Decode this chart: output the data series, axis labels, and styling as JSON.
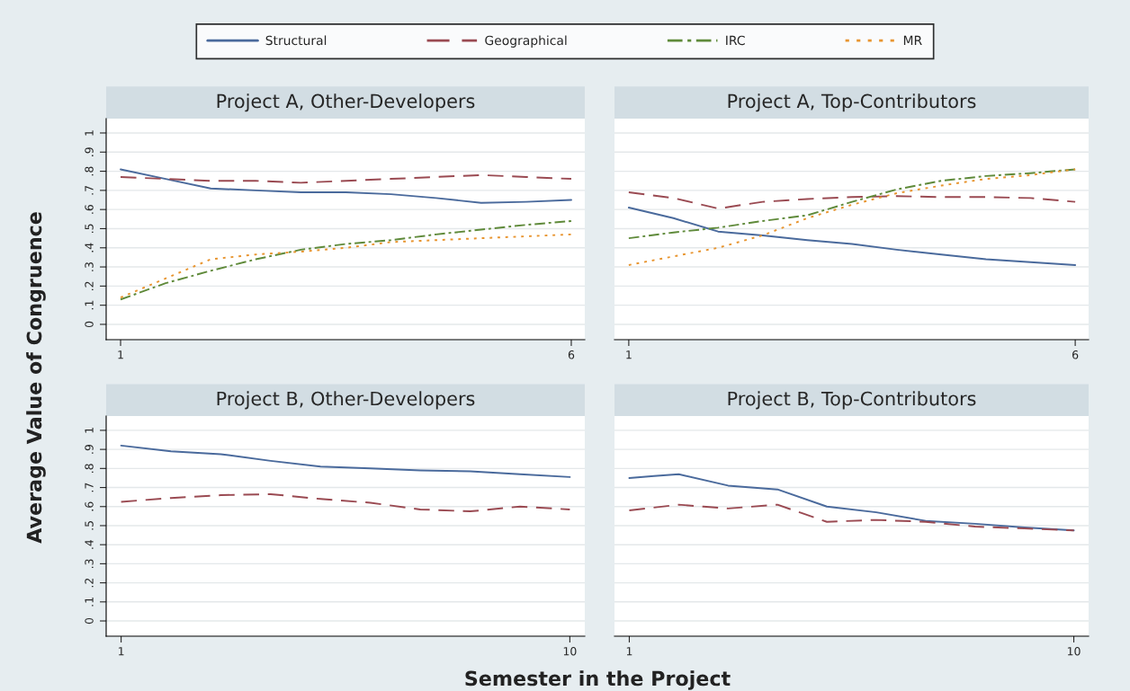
{
  "chart_data": [
    {
      "type": "line",
      "title": "Project A, Other-Developers",
      "ylabel": "Average Value of Congruence",
      "legend": "top",
      "grid": "y",
      "xlim": [
        0.84,
        6.15
      ],
      "xticks": [
        1,
        6
      ],
      "ylim": [
        -0.08,
        1.075
      ],
      "yticks": [
        0,
        {
          "value": 0.1,
          "label": ".1"
        },
        {
          "value": 0.2,
          "label": ".2"
        },
        {
          "value": 0.3,
          "label": ".3"
        },
        {
          "value": 0.4,
          "label": ".4"
        },
        {
          "value": 0.5,
          "label": ".5"
        },
        {
          "value": 0.6,
          "label": ".6"
        },
        {
          "value": 0.7,
          "label": ".7"
        },
        {
          "value": 0.8,
          "label": ".8"
        },
        {
          "value": 0.9,
          "label": ".9"
        },
        1
      ],
      "x": [
        1,
        1.5,
        2,
        2.5,
        3,
        3.5,
        4,
        4.5,
        5,
        5.5,
        6
      ],
      "series": [
        {
          "name": "Structural",
          "color": "#4a6a9c",
          "line_style": "solid",
          "values": [
            0.81,
            0.76,
            0.71,
            0.7,
            0.69,
            0.69,
            0.68,
            0.66,
            0.635,
            0.64,
            0.65
          ]
        },
        {
          "name": "Geographical",
          "color": "#9a4a52",
          "line_style": "dashed",
          "values": [
            0.77,
            0.76,
            0.75,
            0.75,
            0.74,
            0.75,
            0.76,
            0.77,
            0.78,
            0.77,
            0.76
          ]
        },
        {
          "name": "IRC",
          "color": "#5f8a3a",
          "line_style": "dashdot",
          "values": [
            0.13,
            0.215,
            0.28,
            0.34,
            0.39,
            0.42,
            0.44,
            0.47,
            0.495,
            0.52,
            0.54
          ]
        },
        {
          "name": "MR",
          "color": "#e89530",
          "line_style": "dotted",
          "values": [
            0.14,
            0.24,
            0.34,
            0.365,
            0.38,
            0.4,
            0.43,
            0.44,
            0.45,
            0.46,
            0.47
          ]
        }
      ]
    },
    {
      "type": "line",
      "title": "Project A, Top-Contributors",
      "tick_labels": "x",
      "grid": "y",
      "xlim": [
        0.84,
        6.15
      ],
      "xticks": [
        1,
        6
      ],
      "ylim": [
        -0.08,
        1.075
      ],
      "yticks": [
        0,
        0.1,
        0.2,
        0.3,
        0.4,
        0.5,
        0.6,
        0.7,
        0.8,
        0.9,
        1
      ],
      "x": [
        1,
        1.5,
        2,
        2.5,
        3,
        3.5,
        4,
        4.5,
        5,
        5.5,
        6
      ],
      "series": [
        {
          "color": "#4a6a9c",
          "line_style": "solid",
          "values": [
            0.61,
            0.555,
            0.485,
            0.465,
            0.44,
            0.42,
            0.39,
            0.365,
            0.34,
            0.325,
            0.31
          ]
        },
        {
          "color": "#9a4a52",
          "line_style": "dashed",
          "values": [
            0.69,
            0.66,
            0.605,
            0.64,
            0.655,
            0.665,
            0.67,
            0.665,
            0.665,
            0.66,
            0.64
          ]
        },
        {
          "color": "#5f8a3a",
          "line_style": "dashdot",
          "values": [
            0.45,
            0.48,
            0.505,
            0.54,
            0.57,
            0.64,
            0.705,
            0.75,
            0.775,
            0.79,
            0.81
          ]
        },
        {
          "color": "#e89530",
          "line_style": "dotted",
          "values": [
            0.31,
            0.355,
            0.4,
            0.465,
            0.555,
            0.625,
            0.685,
            0.725,
            0.76,
            0.78,
            0.81
          ]
        }
      ]
    },
    {
      "type": "line",
      "title": "Project B, Other-Developers",
      "xlabel": "Semester in the Project",
      "grid": "y",
      "xlim": [
        0.7,
        10.3
      ],
      "xticks": [
        1,
        10
      ],
      "ylim": [
        -0.08,
        1.075
      ],
      "yticks": [
        0,
        {
          "value": 0.1,
          "label": ".1"
        },
        {
          "value": 0.2,
          "label": ".2"
        },
        {
          "value": 0.3,
          "label": ".3"
        },
        {
          "value": 0.4,
          "label": ".4"
        },
        {
          "value": 0.5,
          "label": ".5"
        },
        {
          "value": 0.6,
          "label": ".6"
        },
        {
          "value": 0.7,
          "label": ".7"
        },
        {
          "value": 0.8,
          "label": ".8"
        },
        {
          "value": 0.9,
          "label": ".9"
        },
        1
      ],
      "x": [
        1,
        2,
        3,
        4,
        5,
        6,
        7,
        8,
        9,
        10
      ],
      "series": [
        {
          "color": "#4a6a9c",
          "line_style": "solid",
          "values": [
            0.92,
            0.89,
            0.875,
            0.84,
            0.81,
            0.8,
            0.79,
            0.785,
            0.77,
            0.755
          ]
        },
        {
          "color": "#9a4a52",
          "line_style": "dashed",
          "values": [
            0.625,
            0.645,
            0.66,
            0.665,
            0.64,
            0.62,
            0.585,
            0.575,
            0.6,
            0.585
          ]
        }
      ]
    },
    {
      "type": "line",
      "title": "Project B, Top-Contributors",
      "tick_labels": "x",
      "grid": "y",
      "xlim": [
        0.7,
        10.3
      ],
      "xticks": [
        1,
        10
      ],
      "ylim": [
        -0.08,
        1.075
      ],
      "yticks": [
        0,
        0.1,
        0.2,
        0.3,
        0.4,
        0.5,
        0.6,
        0.7,
        0.8,
        0.9,
        1
      ],
      "series": [
        {
          "color": "#4a6a9c",
          "line_style": "solid",
          "x": [
            1,
            1.5,
            2,
            3,
            4,
            5,
            6,
            7,
            8,
            9,
            10
          ],
          "values": [
            0.75,
            0.76,
            0.77,
            0.71,
            0.69,
            0.6,
            0.57,
            0.525,
            0.51,
            0.49,
            0.475
          ]
        },
        {
          "color": "#9a4a52",
          "line_style": "dashed",
          "x": [
            1,
            2,
            2.5,
            3,
            4,
            4.5,
            5,
            6,
            7,
            8,
            9,
            10
          ],
          "values": [
            0.58,
            0.61,
            0.6,
            0.59,
            0.61,
            0.565,
            0.52,
            0.53,
            0.52,
            0.495,
            0.485,
            0.475
          ]
        }
      ]
    }
  ]
}
